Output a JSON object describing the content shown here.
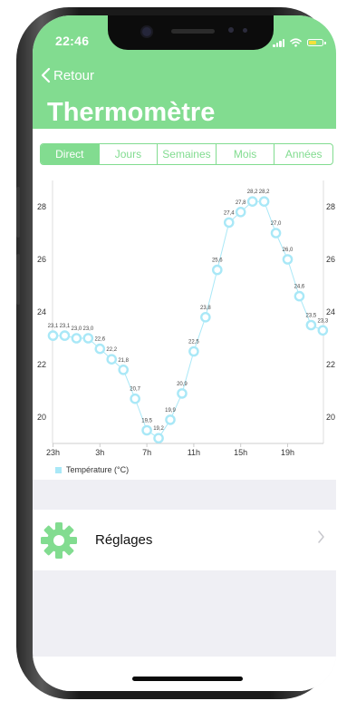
{
  "status_bar": {
    "time": "22:46"
  },
  "nav": {
    "back_label": "Retour",
    "title": "Thermomètre"
  },
  "tabs": [
    {
      "label": "Direct",
      "active": true
    },
    {
      "label": "Jours",
      "active": false
    },
    {
      "label": "Semaines",
      "active": false
    },
    {
      "label": "Mois",
      "active": false
    },
    {
      "label": "Années",
      "active": false
    }
  ],
  "settings": {
    "label": "Réglages",
    "icon": "gear-icon"
  },
  "colors": {
    "accent": "#82dc90",
    "series": "#a9e8f7",
    "background": "#efeff4"
  },
  "chart_data": {
    "type": "line",
    "x_tick_labels": [
      "23h",
      "3h",
      "7h",
      "11h",
      "15h",
      "19h"
    ],
    "y_tick_labels": [
      "20",
      "22",
      "24",
      "26",
      "28"
    ],
    "ylim": [
      19,
      29
    ],
    "grid": false,
    "legend_position": "bottom-left",
    "series": [
      {
        "name": "Température (°C)",
        "values": [
          23.1,
          23.1,
          23.0,
          23.0,
          22.6,
          22.2,
          21.8,
          20.7,
          19.5,
          19.2,
          19.9,
          20.9,
          22.5,
          23.8,
          25.6,
          27.4,
          27.8,
          28.2,
          28.2,
          27.0,
          26.0,
          24.6,
          23.5,
          23.3
        ],
        "labels": [
          "23,1",
          "23,1",
          "23,0",
          "23,0",
          "22,6",
          "22,2",
          "21,8",
          "20,7",
          "19,5",
          "19,2",
          "19,9",
          "20,9",
          "22,5",
          "23,8",
          "25,6",
          "27,4",
          "27,8",
          "28,2",
          "28,2",
          "27,0",
          "26,0",
          "24,6",
          "23,5",
          "23,3"
        ]
      }
    ]
  }
}
